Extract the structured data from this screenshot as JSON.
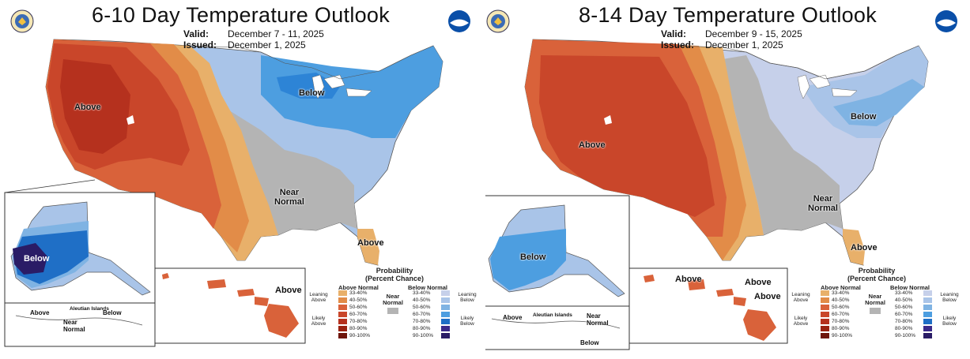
{
  "colors": {
    "above": [
      "#e8b06a",
      "#e28c48",
      "#d9623a",
      "#c9462a",
      "#b5311e",
      "#9a2211",
      "#6f150b"
    ],
    "below": [
      "#c6d0ea",
      "#a9c4e8",
      "#7fb3e3",
      "#4d9ee0",
      "#1f6fc6",
      "#3b2a8a",
      "#2a1c66"
    ],
    "near": "#b4b4b4"
  },
  "panels": [
    {
      "title": "6-10 Day Temperature Outlook",
      "valid_label": "Valid:",
      "valid_value": "December 7 - 11, 2025",
      "issued_label": "Issued:",
      "issued_value": "December 1, 2025",
      "labels": {
        "conus_above": "Above",
        "conus_below": "Below",
        "conus_near": "Near\nNormal",
        "florida": "Above",
        "alaska": "Below",
        "hawaii": "Above",
        "aleutian_islands": "Aleutian Islands",
        "aleutian_above": "Above",
        "aleutian_below": "Below",
        "aleutian_near": "Near\nNormal"
      }
    },
    {
      "title": "8-14 Day Temperature Outlook",
      "valid_label": "Valid:",
      "valid_value": "December 9 - 15, 2025",
      "issued_label": "Issued:",
      "issued_value": "December 1, 2025",
      "labels": {
        "conus_above": "Above",
        "conus_below": "Below",
        "conus_near": "Near\nNormal",
        "florida": "Above",
        "alaska": "Below",
        "hawaii_1": "Above",
        "hawaii_2": "Above",
        "hawaii_3": "Above",
        "aleutian_islands": "Aleutian Islands",
        "aleutian_above": "Above",
        "aleutian_near": "Near\nNormal",
        "aleutian_below": "Below"
      }
    }
  ],
  "legend": {
    "title": "Probability\n(Percent Chance)",
    "above_header": "Above Normal",
    "below_header": "Below Normal",
    "near_label": "Near\nNormal",
    "leaning_above": "Leaning\nAbove",
    "likely_above": "Likely\nAbove",
    "leaning_below": "Leaning\nBelow",
    "likely_below": "Likely\nBelow",
    "categories": [
      "33-40%",
      "40-50%",
      "50-60%",
      "60-70%",
      "70-80%",
      "80-90%",
      "90-100%"
    ]
  },
  "icons": {
    "left_seal": "commerce-seal-icon",
    "noaa": "noaa-logo-icon"
  }
}
